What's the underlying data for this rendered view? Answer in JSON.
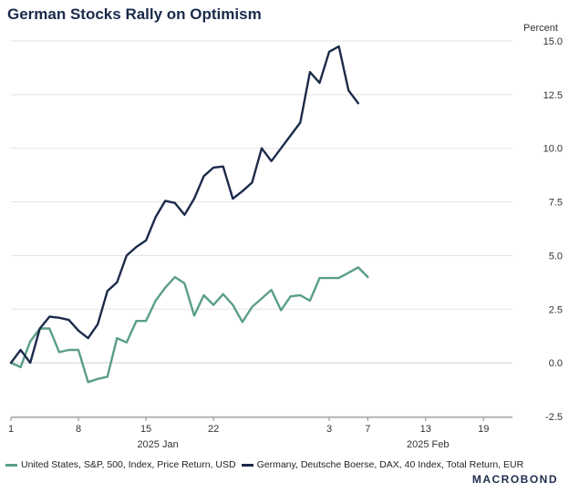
{
  "title": "German Stocks Rally on Optimism",
  "logo": "MACROBOND",
  "colors": {
    "us": "#5a9e8a",
    "de": "#1c2b4a",
    "grid": "#e3e3e3",
    "zero": "#cfcfcf"
  },
  "chart_data": {
    "type": "line",
    "title": "German Stocks Rally on Optimism",
    "ylabel": "Percent",
    "ylim": [
      -2.5,
      15.0
    ],
    "yticks": [
      15.0,
      12.5,
      10.0,
      7.5,
      5.0,
      2.5,
      0.0,
      -2.5
    ],
    "ytick_labels": [
      "15.0",
      "12.5",
      "10.0",
      "7.5",
      "5.0",
      "2.5",
      "0.0",
      "-2.5"
    ],
    "xlim": [
      "2025-01-01",
      "2025-02-22"
    ],
    "xticks": [
      {
        "date": "2025-01-01",
        "label": "1"
      },
      {
        "date": "2025-01-08",
        "label": "8"
      },
      {
        "date": "2025-01-15",
        "label": "15"
      },
      {
        "date": "2025-01-22",
        "label": "22"
      },
      {
        "date": "2025-02-03",
        "label": "3"
      },
      {
        "date": "2025-02-07",
        "label": "7"
      },
      {
        "date": "2025-02-13",
        "label": "13"
      },
      {
        "date": "2025-02-19",
        "label": "19"
      }
    ],
    "month_labels": [
      {
        "date": "2025-01-15",
        "label": "2025 Jan"
      },
      {
        "date": "2025-02-12",
        "label": "2025 Feb"
      }
    ],
    "axis_side": "right",
    "grid": true,
    "legend_position": "bottom",
    "series": [
      {
        "name": "United States, S&P, 500, Index, Price Return, USD",
        "key": "us",
        "points": [
          [
            "2025-01-01",
            0.0
          ],
          [
            "2025-01-02",
            -0.2
          ],
          [
            "2025-01-03",
            1.0
          ],
          [
            "2025-01-04",
            1.6
          ],
          [
            "2025-01-05",
            1.6
          ],
          [
            "2025-01-06",
            0.5
          ],
          [
            "2025-01-07",
            0.6
          ],
          [
            "2025-01-08",
            0.6
          ],
          [
            "2025-01-09",
            -0.9
          ],
          [
            "2025-01-10",
            -0.75
          ],
          [
            "2025-01-11",
            -0.65
          ],
          [
            "2025-01-12",
            1.15
          ],
          [
            "2025-01-13",
            0.95
          ],
          [
            "2025-01-14",
            1.95
          ],
          [
            "2025-01-15",
            1.95
          ],
          [
            "2025-01-16",
            2.9
          ],
          [
            "2025-01-17",
            3.5
          ],
          [
            "2025-01-18",
            4.0
          ],
          [
            "2025-01-19",
            3.7
          ],
          [
            "2025-01-20",
            2.2
          ],
          [
            "2025-01-21",
            3.15
          ],
          [
            "2025-01-22",
            2.7
          ],
          [
            "2025-01-23",
            3.2
          ],
          [
            "2025-01-24",
            2.7
          ],
          [
            "2025-01-25",
            1.9
          ],
          [
            "2025-01-26",
            2.6
          ],
          [
            "2025-01-27",
            3.0
          ],
          [
            "2025-01-28",
            3.4
          ],
          [
            "2025-01-29",
            2.45
          ],
          [
            "2025-01-30",
            3.1
          ],
          [
            "2025-01-31",
            3.15
          ],
          [
            "2025-02-01",
            2.9
          ],
          [
            "2025-02-02",
            3.95
          ],
          [
            "2025-02-03",
            3.95
          ],
          [
            "2025-02-04",
            3.95
          ],
          [
            "2025-02-05",
            4.2
          ],
          [
            "2025-02-06",
            4.45
          ],
          [
            "2025-02-07",
            4.0
          ]
        ]
      },
      {
        "name": "Germany, Deutsche Boerse, DAX, 40 Index, Total Return, EUR",
        "key": "de",
        "points": [
          [
            "2025-01-01",
            0.0
          ],
          [
            "2025-01-02",
            0.6
          ],
          [
            "2025-01-03",
            0.0
          ],
          [
            "2025-01-04",
            1.6
          ],
          [
            "2025-01-05",
            2.15
          ],
          [
            "2025-01-06",
            2.1
          ],
          [
            "2025-01-07",
            2.0
          ],
          [
            "2025-01-08",
            1.5
          ],
          [
            "2025-01-09",
            1.15
          ],
          [
            "2025-01-10",
            1.8
          ],
          [
            "2025-01-11",
            3.35
          ],
          [
            "2025-01-12",
            3.75
          ],
          [
            "2025-01-13",
            5.0
          ],
          [
            "2025-01-14",
            5.4
          ],
          [
            "2025-01-15",
            5.7
          ],
          [
            "2025-01-16",
            6.8
          ],
          [
            "2025-01-17",
            7.55
          ],
          [
            "2025-01-18",
            7.45
          ],
          [
            "2025-01-19",
            6.9
          ],
          [
            "2025-01-20",
            7.65
          ],
          [
            "2025-01-21",
            8.7
          ],
          [
            "2025-01-22",
            9.1
          ],
          [
            "2025-01-23",
            9.15
          ],
          [
            "2025-01-24",
            7.65
          ],
          [
            "2025-01-25",
            8.0
          ],
          [
            "2025-01-26",
            8.4
          ],
          [
            "2025-01-27",
            10.0
          ],
          [
            "2025-01-28",
            9.4
          ],
          [
            "2025-01-29",
            10.0
          ],
          [
            "2025-01-30",
            10.6
          ],
          [
            "2025-01-31",
            11.2
          ],
          [
            "2025-02-01",
            13.55
          ],
          [
            "2025-02-02",
            13.05
          ],
          [
            "2025-02-03",
            14.5
          ],
          [
            "2025-02-04",
            14.75
          ],
          [
            "2025-02-05",
            12.7
          ],
          [
            "2025-02-06",
            12.1
          ]
        ]
      }
    ]
  }
}
